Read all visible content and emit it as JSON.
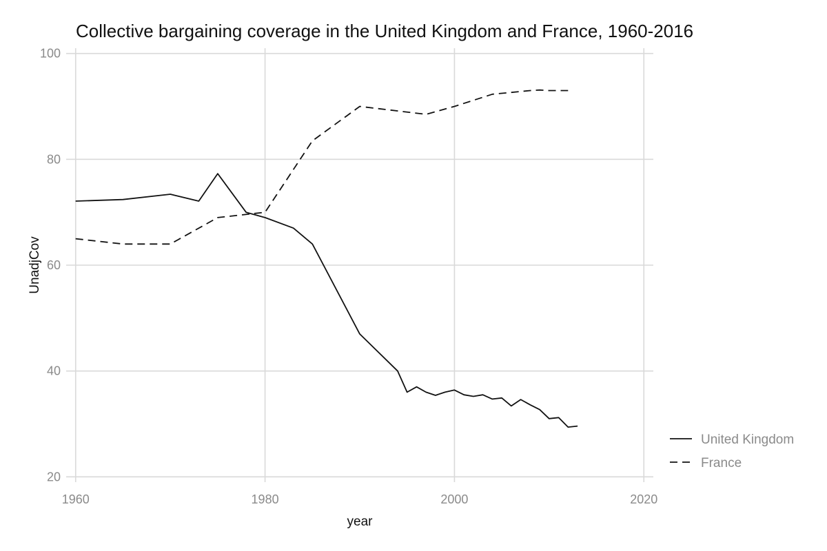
{
  "chart_data": {
    "type": "line",
    "title": "Collective bargaining coverage in the United Kingdom and France, 1960-2016",
    "xlabel": "year",
    "ylabel": "UnadjCov",
    "xlim": [
      1959,
      2021
    ],
    "ylim": [
      19,
      101
    ],
    "x_ticks": [
      1960,
      1980,
      2000,
      2020
    ],
    "y_ticks": [
      20,
      40,
      60,
      80,
      100
    ],
    "grid": true,
    "legend_position": "right",
    "series": [
      {
        "name": "United Kingdom",
        "line_style": "solid",
        "x": [
          1960,
          1965,
          1970,
          1973,
          1975,
          1978,
          1980,
          1983,
          1985,
          1990,
          1994,
          1995,
          1996,
          1997,
          1998,
          1999,
          2000,
          2001,
          2002,
          2003,
          2004,
          2005,
          2006,
          2007,
          2008,
          2009,
          2010,
          2011,
          2012,
          2013
        ],
        "values": [
          72.1,
          72.4,
          73.4,
          72.1,
          77.3,
          70.0,
          69.0,
          67.0,
          64.0,
          47.0,
          40.0,
          36.0,
          37.0,
          36.0,
          35.4,
          36.0,
          36.4,
          35.5,
          35.2,
          35.5,
          34.7,
          34.9,
          33.4,
          34.6,
          33.6,
          32.7,
          31.0,
          31.2,
          29.4,
          29.6
        ]
      },
      {
        "name": "France",
        "line_style": "dashed",
        "x": [
          1960,
          1965,
          1970,
          1975,
          1980,
          1985,
          1990,
          1997,
          2000,
          2004,
          2008,
          2009,
          2010,
          2012
        ],
        "values": [
          65.0,
          64.0,
          64.0,
          69.0,
          70.0,
          83.5,
          90.0,
          88.5,
          90.0,
          92.3,
          93.0,
          93.1,
          93.0,
          93.0
        ]
      }
    ]
  }
}
